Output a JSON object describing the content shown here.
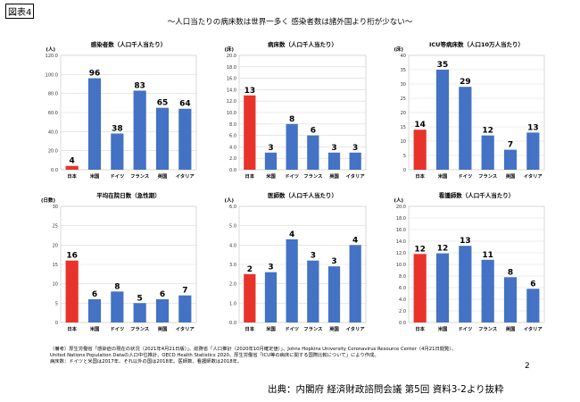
{
  "figure_label": "図表4",
  "title": "～人口当たりの病床数は世界一多く 感染者数は諸外国より桁が少ない～",
  "colors": {
    "japan": "#e8332a",
    "other": "#4472c4"
  },
  "chart_data": [
    {
      "type": "bar",
      "title": "感染者数（人口千人当たり）",
      "unit": "(人)",
      "categories": [
        "日本",
        "米国",
        "ドイツ",
        "フランス",
        "英国",
        "イタリア"
      ],
      "values": [
        4,
        96,
        38,
        83,
        65,
        64
      ],
      "value_labels": [
        "4",
        "96",
        "38",
        "83",
        "65",
        "64"
      ],
      "ylim": [
        0,
        120
      ],
      "yticks": [
        "0.0",
        "20.0",
        "40.0",
        "60.0",
        "80.0",
        "100.0",
        "120.0"
      ],
      "grid": true
    },
    {
      "type": "bar",
      "title": "病床数（人口千人当たり）",
      "unit": "(床)",
      "categories": [
        "日本",
        "米国",
        "ドイツ",
        "フランス",
        "英国",
        "イタリア"
      ],
      "values": [
        13,
        3,
        8,
        6,
        3,
        3
      ],
      "value_labels": [
        "13",
        "3",
        "8",
        "6",
        "3",
        "3"
      ],
      "ylim": [
        0,
        20
      ],
      "yticks": [
        "0.0",
        "2.0",
        "4.0",
        "6.0",
        "8.0",
        "10.0",
        "12.0",
        "14.0",
        "16.0",
        "18.0",
        "20.0"
      ],
      "grid": true
    },
    {
      "type": "bar",
      "title": "ICU等病床数（人口10万人当たり）",
      "unit": "(床)",
      "categories": [
        "日本",
        "米国",
        "ドイツ",
        "フランス",
        "英国",
        "イタリア"
      ],
      "values": [
        14,
        35,
        29,
        12,
        7,
        13
      ],
      "value_labels": [
        "14",
        "35",
        "29",
        "12",
        "7",
        "13"
      ],
      "ylim": [
        0,
        40
      ],
      "yticks": [
        "0",
        "5",
        "10",
        "15",
        "20",
        "25",
        "30",
        "35",
        "40"
      ],
      "grid": true
    },
    {
      "type": "bar",
      "title": "平均在院日数（急性期）",
      "unit": "(日数)",
      "categories": [
        "日本",
        "米国",
        "ドイツ",
        "フランス",
        "英国",
        "イタリア"
      ],
      "values": [
        16,
        6,
        8,
        5,
        6,
        7
      ],
      "value_labels": [
        "16",
        "6",
        "8",
        "5",
        "6",
        "7"
      ],
      "ylim": [
        0,
        30
      ],
      "yticks": [
        "0",
        "5",
        "10",
        "15",
        "20",
        "25",
        "30"
      ],
      "grid": true
    },
    {
      "type": "bar",
      "title": "医師数（人口千人当たり）",
      "unit": "(人)",
      "categories": [
        "日本",
        "米国",
        "ドイツ",
        "フランス",
        "英国",
        "イタリア"
      ],
      "values": [
        2.5,
        2.6,
        4.3,
        3.2,
        2.9,
        4.0
      ],
      "value_labels": [
        "2",
        "3",
        "4",
        "3",
        "3",
        "4"
      ],
      "ylim": [
        0,
        6
      ],
      "yticks": [
        "0.0",
        "1.0",
        "2.0",
        "3.0",
        "4.0",
        "5.0",
        "6.0"
      ],
      "grid": true
    },
    {
      "type": "bar",
      "title": "看護師数（人口千人当たり）",
      "unit": "(人)",
      "categories": [
        "日本",
        "米国",
        "ドイツ",
        "フランス",
        "英国",
        "イタリア"
      ],
      "values": [
        11.8,
        11.9,
        13.2,
        10.8,
        7.8,
        5.8
      ],
      "value_labels": [
        "12",
        "12",
        "13",
        "11",
        "8",
        "6"
      ],
      "ylim": [
        0,
        20
      ],
      "yticks": [
        "0.0",
        "2.0",
        "4.0",
        "6.0",
        "8.0",
        "10.0",
        "12.0",
        "14.0",
        "16.0",
        "18.0",
        "20.0"
      ],
      "grid": true
    }
  ],
  "footnote": [
    "（備考）厚生労働省「感染症の現在の状況（2021年4月21日版）」、総務省「人口推計（2020年10月確定値）」、Johns Hopkins University Coronavirus Resource Center（4月21日閲覧）、",
    "United Nations Population Dataの人口中位推計、OECD Health Statistics 2020、厚生労働省「ICU等の病床に関する国際比較について」により作成。",
    "病床数：ドイツと米国は2017年、それ以外の国は2018年。医師数、看護師数は2018年。"
  ],
  "page_number": "2",
  "source": "出典：内閣府 経済財政諮問会議 第5回 資料3-2より抜粋"
}
